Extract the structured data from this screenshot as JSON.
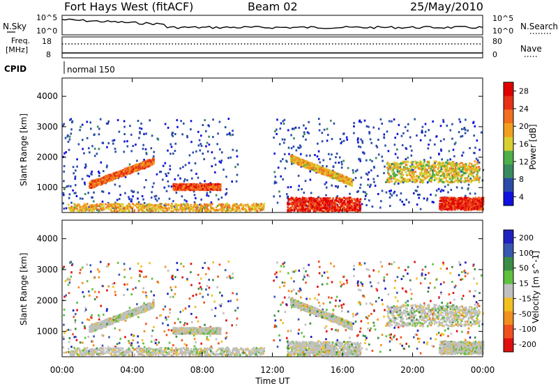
{
  "header": {
    "station": "Fort Hays West (fitACF)",
    "beam": "Beam 02",
    "date": "25/May/2010"
  },
  "top_panels": {
    "nsky_label": "N.Sky",
    "nsky_ticks": [
      "10^5",
      "10^0"
    ],
    "nsearch_label": "N.Search",
    "nsearch_ticks": [
      "10^5",
      "10^0"
    ],
    "freq_label_line1": "Freq.",
    "freq_label_line2": "[MHz]",
    "freq_ticks": [
      "18",
      "8"
    ],
    "nave_label": "Nave",
    "nave_ticks": [
      "80",
      "0"
    ],
    "cpid_label": "CPID",
    "cpid_value": "normal 150"
  },
  "colors": {
    "power_scale": [
      "#1010e0",
      "#2a4ca8",
      "#3a8a60",
      "#4db048",
      "#d8d030",
      "#f0a020",
      "#f07020",
      "#e83018",
      "#e00000"
    ],
    "velocity_scale": [
      "#2020c0",
      "#3858b0",
      "#3c8c48",
      "#60c040",
      "#c0c0c0",
      "#f0c020",
      "#f09020",
      "#f05020",
      "#e01010"
    ]
  },
  "chart_data": [
    {
      "type": "heatmap",
      "name": "power",
      "ylabel": "Slant Range [km]",
      "xlabel": "Time UT",
      "x_ticks": [
        "00:00",
        "04:00",
        "08:00",
        "12:00",
        "16:00",
        "20:00",
        "00:00"
      ],
      "xlim_hours": [
        0,
        24
      ],
      "y_ticks": [
        1000,
        2000,
        3000,
        4000
      ],
      "ylim_km": [
        180,
        4600
      ],
      "colorbar_label": "Power [dB]",
      "colorbar_ticks": [
        "4",
        "8",
        "12",
        "16",
        "20",
        "24",
        "28"
      ],
      "colorbar_range": [
        0,
        30
      ],
      "scatter_bands": [
        {
          "t": [
            1.5,
            5.2
          ],
          "r_start": 1100,
          "r_end": 1900,
          "power": 22
        },
        {
          "t": [
            6.3,
            9.0
          ],
          "r": [
            950,
            1150
          ],
          "power": 24
        },
        {
          "t": [
            0.3,
            11.5
          ],
          "r": [
            250,
            500
          ],
          "power": 18
        },
        {
          "t": [
            12.8,
            17.0
          ],
          "r": [
            250,
            700
          ],
          "power": 26
        },
        {
          "t": [
            13.0,
            16.5
          ],
          "r_start": 2000,
          "r_end": 1200,
          "power": 18
        },
        {
          "t": [
            18.5,
            23.8
          ],
          "r": [
            1200,
            1900
          ],
          "power": 16
        },
        {
          "t": [
            21.5,
            24.0
          ],
          "r": [
            300,
            700
          ],
          "power": 26
        }
      ]
    },
    {
      "type": "heatmap",
      "name": "velocity",
      "ylabel": "Slant Range [km]",
      "xlabel": "Time UT",
      "x_ticks": [
        "00:00",
        "04:00",
        "08:00",
        "12:00",
        "16:00",
        "20:00",
        "00:00"
      ],
      "xlim_hours": [
        0,
        24
      ],
      "y_ticks": [
        1000,
        2000,
        3000,
        4000
      ],
      "ylim_km": [
        180,
        4600
      ],
      "colorbar_label": "Velocity [m s^-1]",
      "colorbar_ticks": [
        "200",
        "100",
        "50",
        "15",
        "-15",
        "-50",
        "-100",
        "-200"
      ],
      "colorbar_range": [
        -250,
        250
      ]
    }
  ]
}
